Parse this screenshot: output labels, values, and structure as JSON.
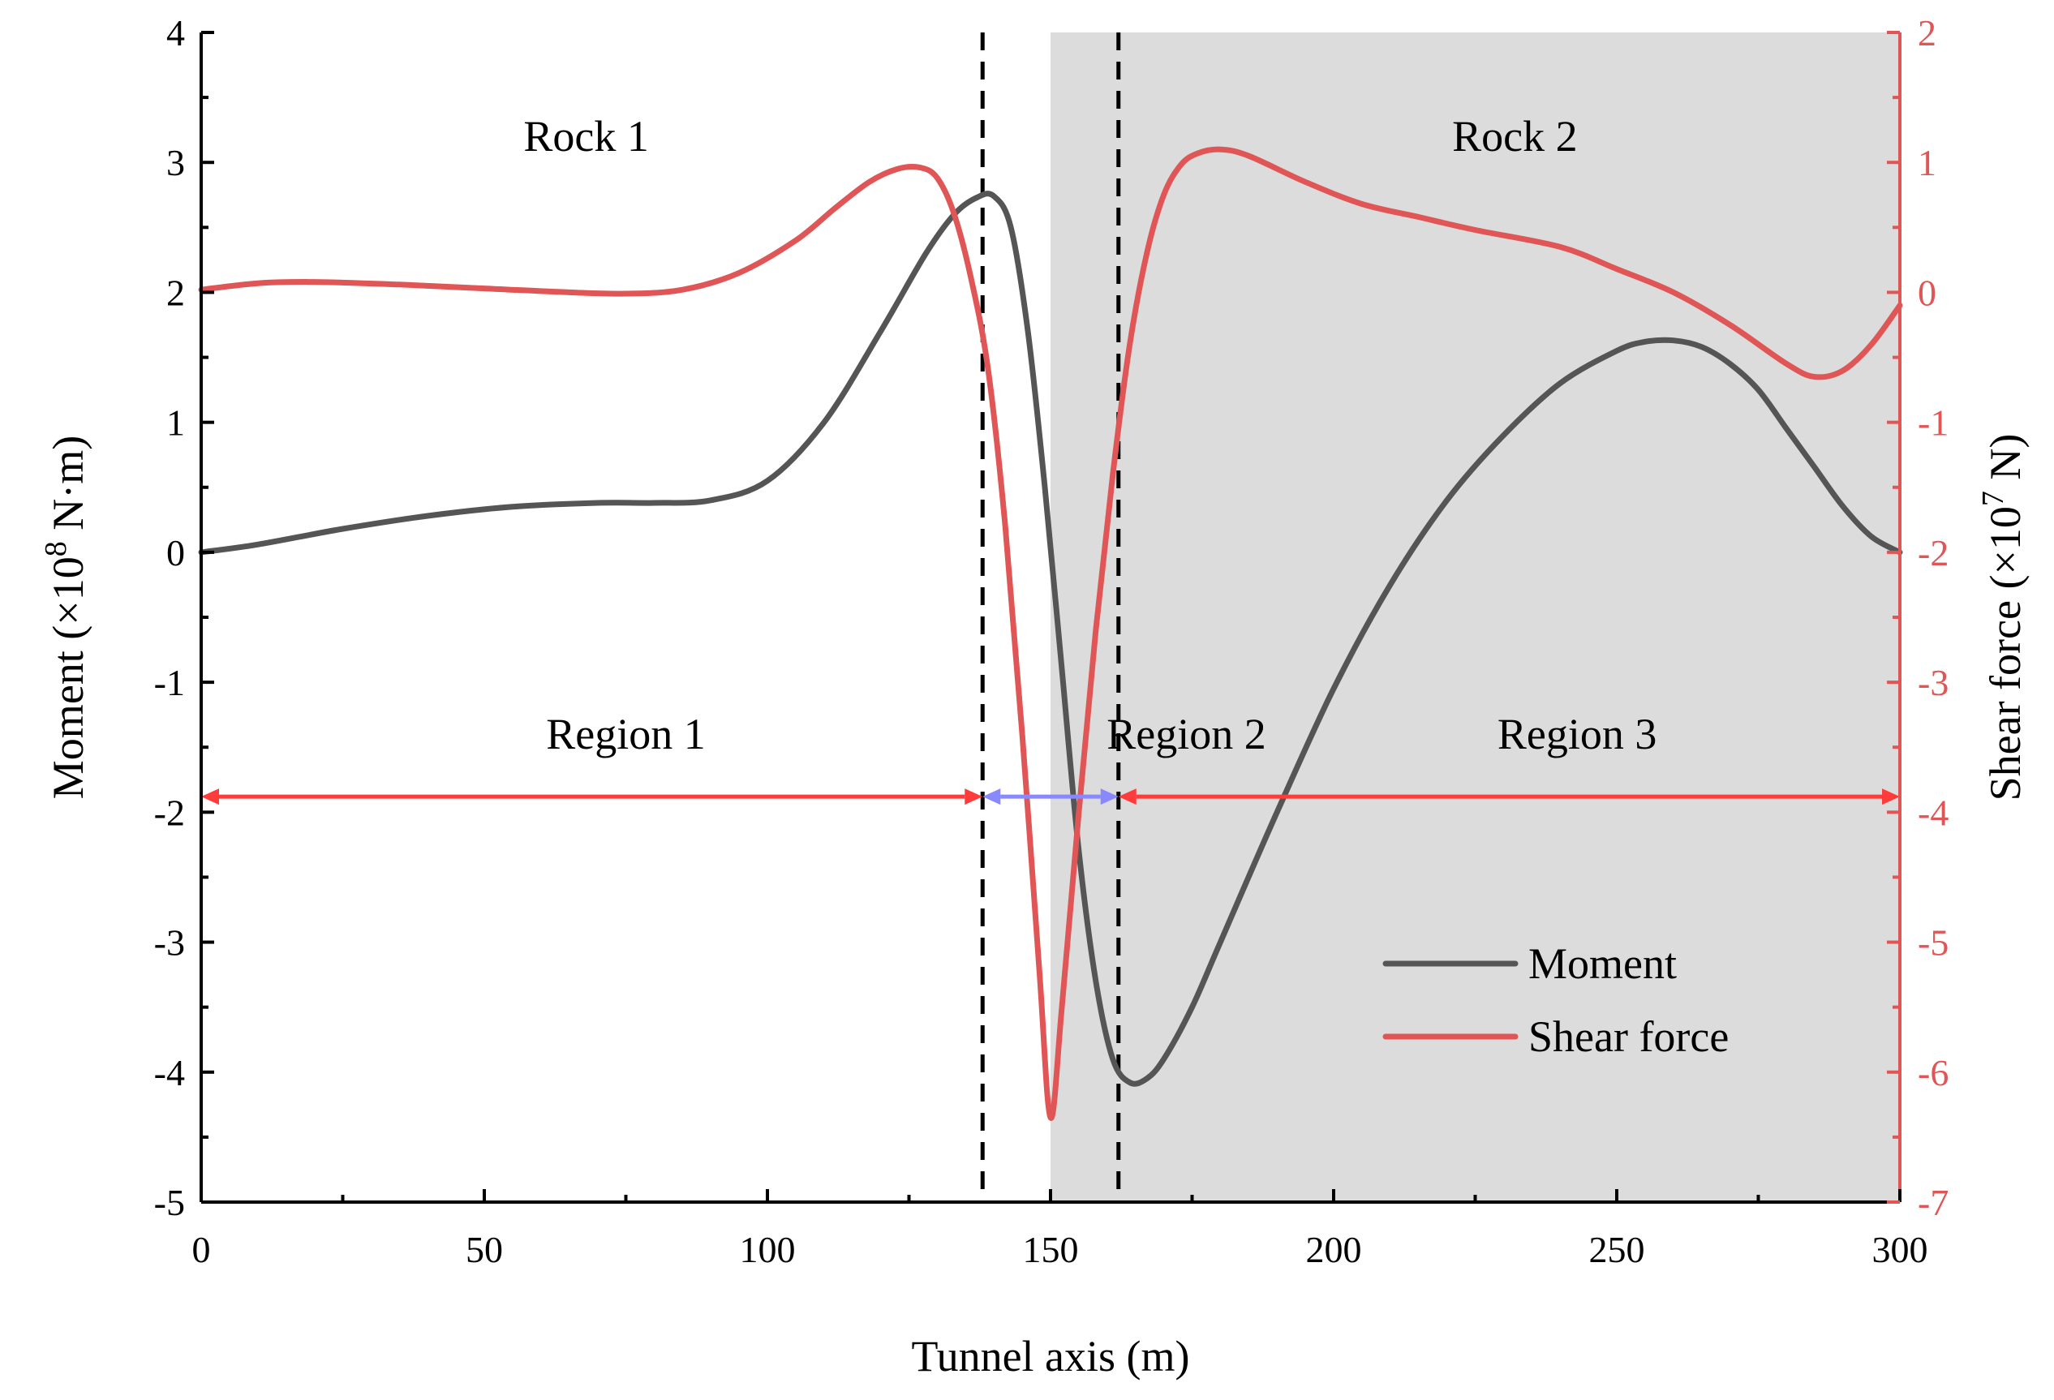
{
  "chart_data": {
    "type": "line",
    "title": "",
    "xlabel": "Tunnel axis (m)",
    "ylabel_left": "Moment (×10⁸ N·m)",
    "ylabel_left_parts": {
      "before": "Moment (×10",
      "sup": "8",
      "after": " N·m)"
    },
    "ylabel_right": "Shear force (×10⁷ N)",
    "ylabel_right_parts": {
      "before": "Shear force (×10",
      "sup": "7",
      "after": " N)"
    },
    "xlim": [
      0,
      300
    ],
    "ylim_left": [
      -5,
      4
    ],
    "ylim_right": [
      -7,
      2
    ],
    "x_ticks": [
      "0",
      "50",
      "100",
      "150",
      "200",
      "250",
      "300"
    ],
    "y_left_ticks": [
      "4",
      "3",
      "2",
      "1",
      "0",
      "-1",
      "-2",
      "-3",
      "-4",
      "-5"
    ],
    "y_right_ticks": [
      "2",
      "1",
      "0",
      "-1",
      "-2",
      "-3",
      "-4",
      "-5",
      "-6",
      "-7"
    ],
    "grid": false,
    "shaded_range": [
      150,
      300
    ],
    "dashed_lines_x": [
      138,
      162
    ],
    "region_spans": [
      {
        "label": "Region 1",
        "from": 0,
        "to": 138,
        "color": "#FF3B3B",
        "label_x": 75,
        "label_y_left": -1.4
      },
      {
        "label": "Region 2",
        "from": 138,
        "to": 162,
        "color": "#8888FF",
        "label_x": 174,
        "label_y_left": -1.4
      },
      {
        "label": "Region 3",
        "from": 162,
        "to": 300,
        "color": "#FF3B3B",
        "label_x": 243,
        "label_y_left": -1.4
      }
    ],
    "region_arrow_y_left": -1.88,
    "rock_labels": [
      {
        "label": "Rock 1",
        "x": 68,
        "y_left": 3.2
      },
      {
        "label": "Rock 2",
        "x": 232,
        "y_left": 3.2
      }
    ],
    "legend": {
      "position": "bottom-right",
      "entries": [
        "Moment",
        "Shear force"
      ]
    },
    "series": [
      {
        "name": "Moment",
        "axis": "left",
        "color": "#555555",
        "x": [
          0,
          10,
          25,
          40,
          55,
          70,
          80,
          90,
          100,
          110,
          120,
          128,
          133,
          137,
          140,
          143,
          146,
          149,
          152,
          155,
          158,
          161,
          164,
          167,
          170,
          175,
          180,
          190,
          200,
          210,
          220,
          230,
          240,
          250,
          255,
          260,
          265,
          270,
          275,
          280,
          285,
          290,
          295,
          300
        ],
        "values": [
          0,
          0.06,
          0.18,
          0.28,
          0.35,
          0.38,
          0.38,
          0.4,
          0.55,
          1.0,
          1.7,
          2.3,
          2.6,
          2.73,
          2.74,
          2.5,
          1.7,
          0.5,
          -0.9,
          -2.3,
          -3.3,
          -3.9,
          -4.08,
          -4.05,
          -3.9,
          -3.5,
          -3.0,
          -2.0,
          -1.05,
          -0.25,
          0.4,
          0.9,
          1.3,
          1.55,
          1.62,
          1.63,
          1.58,
          1.45,
          1.25,
          0.95,
          0.65,
          0.35,
          0.12,
          0
        ]
      },
      {
        "name": "Shear force",
        "axis": "right",
        "color": "#E05555",
        "x": [
          0,
          10,
          20,
          35,
          50,
          65,
          75,
          85,
          95,
          105,
          112,
          118,
          123,
          127,
          130,
          133,
          136,
          139,
          142,
          145,
          148,
          150,
          152,
          155,
          158,
          161,
          164,
          167,
          170,
          173,
          176,
          180,
          185,
          195,
          205,
          215,
          225,
          240,
          250,
          260,
          270,
          280,
          285,
          290,
          295,
          300
        ],
        "values": [
          0.02,
          0.07,
          0.08,
          0.06,
          0.03,
          0.0,
          -0.01,
          0.02,
          0.15,
          0.4,
          0.65,
          0.85,
          0.95,
          0.96,
          0.88,
          0.6,
          0.1,
          -0.6,
          -1.8,
          -3.4,
          -5.2,
          -6.35,
          -5.5,
          -4.0,
          -2.6,
          -1.4,
          -0.4,
          0.3,
          0.75,
          0.98,
          1.07,
          1.1,
          1.05,
          0.85,
          0.68,
          0.58,
          0.48,
          0.35,
          0.18,
          0.0,
          -0.25,
          -0.55,
          -0.65,
          -0.6,
          -0.4,
          -0.1
        ]
      }
    ]
  }
}
